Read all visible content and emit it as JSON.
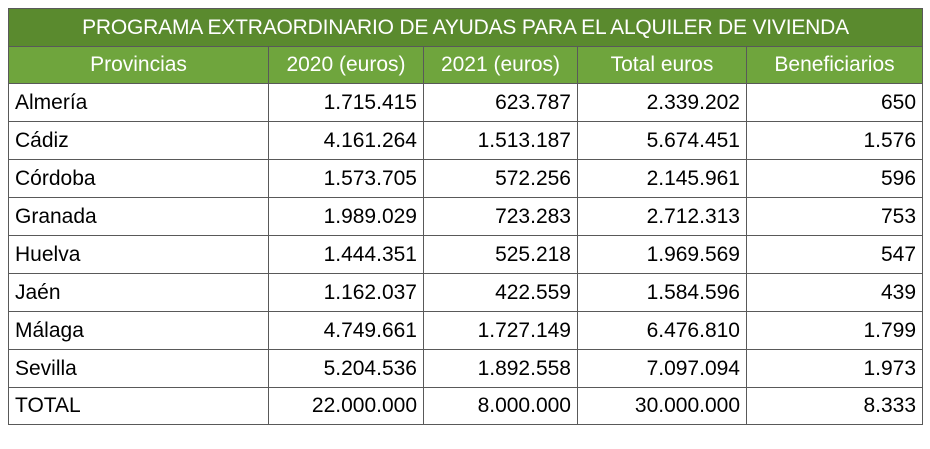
{
  "table": {
    "title": "PROGRAMA EXTRAORDINARIO DE AYUDAS PARA EL ALQUILER DE VIVIENDA",
    "headers": [
      "Provincias",
      "2020 (euros)",
      "2021 (euros)",
      "Total euros",
      "Beneficiarios"
    ],
    "rows": [
      [
        "Almería",
        "1.715.415",
        "623.787",
        "2.339.202",
        "650"
      ],
      [
        "Cádiz",
        "4.161.264",
        "1.513.187",
        "5.674.451",
        "1.576"
      ],
      [
        "Córdoba",
        "1.573.705",
        "572.256",
        "2.145.961",
        "596"
      ],
      [
        "Granada",
        "1.989.029",
        "723.283",
        "2.712.313",
        "753"
      ],
      [
        "Huelva",
        "1.444.351",
        "525.218",
        "1.969.569",
        "547"
      ],
      [
        "Jaén",
        "1.162.037",
        "422.559",
        "1.584.596",
        "439"
      ],
      [
        "Málaga",
        "4.749.661",
        "1.727.149",
        "6.476.810",
        "1.799"
      ],
      [
        "Sevilla",
        "5.204.536",
        "1.892.558",
        "7.097.094",
        "1.973"
      ]
    ],
    "total": [
      "TOTAL",
      "22.000.000",
      "8.000.000",
      "30.000.000",
      "8.333"
    ]
  },
  "colors": {
    "title_bg": "#5a8a2e",
    "header_bg": "#6fa53d",
    "header_text": "#ffffff",
    "border": "#595959"
  }
}
